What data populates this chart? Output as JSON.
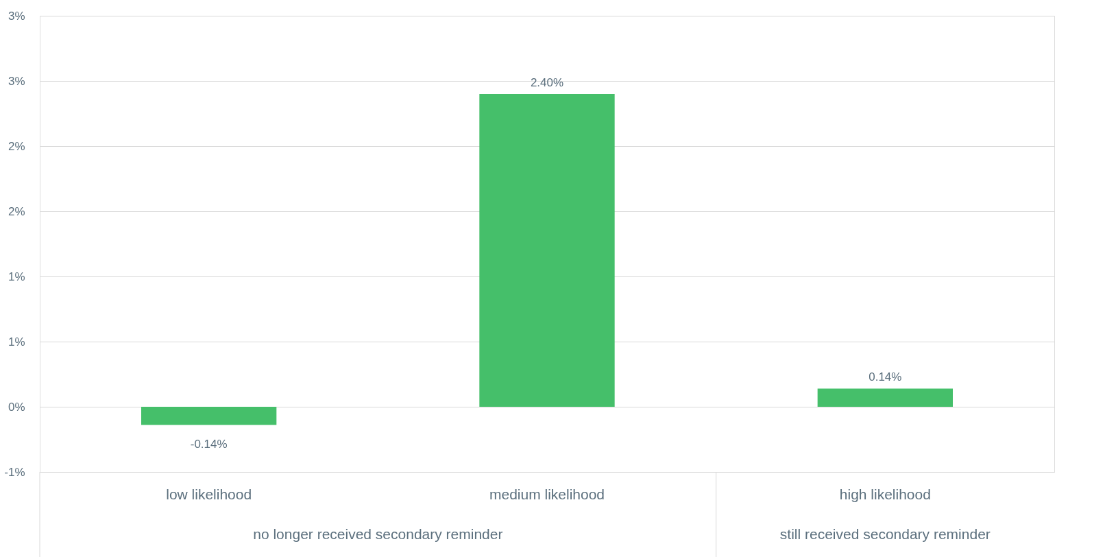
{
  "chart_data": {
    "type": "bar",
    "categories": [
      "low likelihood",
      "medium likelihood",
      "high likelihood"
    ],
    "values": [
      -0.14,
      2.4,
      0.14
    ],
    "color": "#45bf6a",
    "ylim": [
      -0.5,
      3.0
    ],
    "yticks": [
      {
        "value": -0.5,
        "label": "-1%"
      },
      {
        "value": 0,
        "label": "0%"
      },
      {
        "value": 0.5,
        "label": "1%"
      },
      {
        "value": 1.0,
        "label": "1%"
      },
      {
        "value": 1.5,
        "label": "2%"
      },
      {
        "value": 2.0,
        "label": "2%"
      },
      {
        "value": 2.5,
        "label": "3%"
      },
      {
        "value": 3.0,
        "label": "3%"
      }
    ],
    "value_labels": [
      "-0.14%",
      "2.40%",
      "0.14%"
    ],
    "grid": "y",
    "annotations": [
      "no longer received secondary reminder",
      "still received secondary reminder"
    ]
  }
}
